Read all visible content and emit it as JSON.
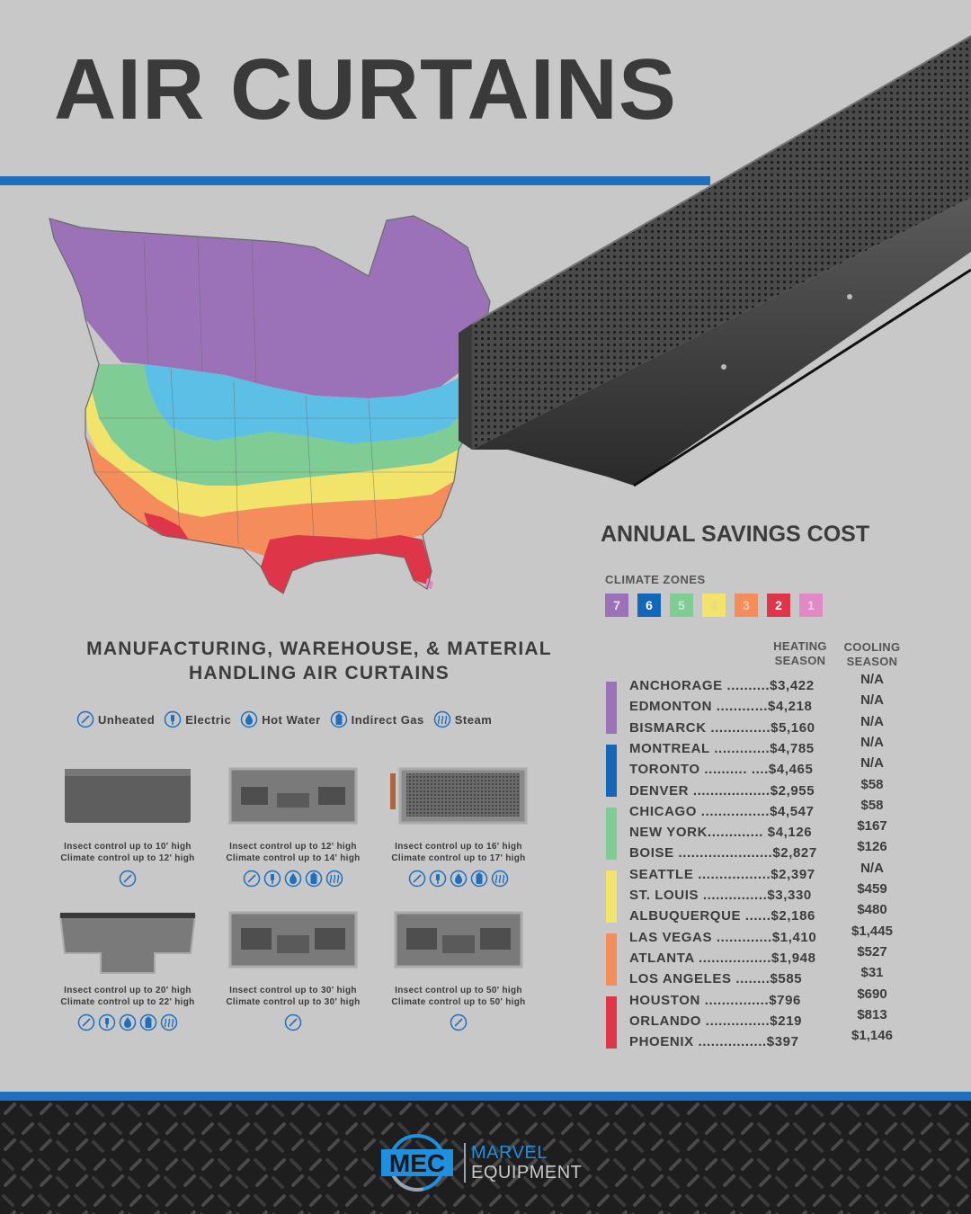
{
  "header": {
    "title": "AIR CURTAINS"
  },
  "savings": {
    "title": "ANNUAL SAVINGS COST",
    "zones_label": "CLIMATE ZONES",
    "zones": [
      {
        "label": "7",
        "color": "#9b72b8",
        "text_color": "#e9e0f1"
      },
      {
        "label": "6",
        "color": "#1466b8",
        "text_color": "#ffffff"
      },
      {
        "label": "5",
        "color": "#7fcc95",
        "text_color": "#c7e9cf"
      },
      {
        "label": "4",
        "color": "#f2e46a",
        "text_color": "#e0d7a0"
      },
      {
        "label": "3",
        "color": "#f48c5c",
        "text_color": "#f6c9b2"
      },
      {
        "label": "2",
        "color": "#de3549",
        "text_color": "#ffffff"
      },
      {
        "label": "1",
        "color": "#e189c5",
        "text_color": "#f3cbe6"
      }
    ],
    "heating_header": "HEATING SEASON",
    "cooling_header": "COOLING SEASON",
    "rows": [
      {
        "city": "ANCHORAGE ..........$3,422",
        "cooling": "N/A"
      },
      {
        "city": "EDMONTON ............$4,218",
        "cooling": "N/A"
      },
      {
        "city": "BISMARCK ..............$5,160",
        "cooling": "N/A"
      },
      {
        "city": "MONTREAL .............$4,785",
        "cooling": "N/A"
      },
      {
        "city": "TORONTO .......... ....$4,465",
        "cooling": "N/A"
      },
      {
        "city": "DENVER ..................$2,955",
        "cooling": "$58"
      },
      {
        "city": "CHICAGO ................$4,547",
        "cooling": "$58"
      },
      {
        "city": "NEW YORK............. $4,126",
        "cooling": "$167"
      },
      {
        "city": "BOISE ......................$2,827",
        "cooling": "$126"
      },
      {
        "city": "SEATTLE .................$2,397",
        "cooling": "N/A"
      },
      {
        "city": "ST. LOUIS ...............$3,330",
        "cooling": "$459"
      },
      {
        "city": "ALBUQUERQUE ......$2,186",
        "cooling": "$480"
      },
      {
        "city": "LAS VEGAS .............$1,410",
        "cooling": "$1,445"
      },
      {
        "city": "ATLANTA .................$1,948",
        "cooling": "$527"
      },
      {
        "city": "LOS ANGELES ........$585",
        "cooling": "$31"
      },
      {
        "city": "HOUSTON ...............$796",
        "cooling": "$690"
      },
      {
        "city": "ORLANDO ...............$219",
        "cooling": "$813"
      },
      {
        "city": "PHOENIX ................$397",
        "cooling": "$1,146"
      }
    ]
  },
  "manufacturing": {
    "title_line1": "MANUFACTURING, WAREHOUSE, & MATERIAL",
    "title_line2": "HANDLING AIR CURTAINS",
    "legend": [
      {
        "icon": "unheated-icon",
        "label": "Unheated"
      },
      {
        "icon": "electric-icon",
        "label": "Electric"
      },
      {
        "icon": "hot-water-icon",
        "label": "Hot Water"
      },
      {
        "icon": "indirect-gas-icon",
        "label": "Indirect Gas"
      },
      {
        "icon": "steam-icon",
        "label": "Steam"
      }
    ],
    "products": [
      {
        "line1": "Insect control up to 10' high",
        "line2": "Climate control up to 12' high",
        "icons": [
          "unheated-icon"
        ]
      },
      {
        "line1": "Insect control up to 12' high",
        "line2": "Climate control up to 14' high",
        "icons": [
          "unheated-icon",
          "electric-icon",
          "hot-water-icon",
          "indirect-gas-icon",
          "steam-icon"
        ]
      },
      {
        "line1": "Insect control up to 16' high",
        "line2": "Climate control up to 17' high",
        "icons": [
          "unheated-icon",
          "electric-icon",
          "hot-water-icon",
          "indirect-gas-icon",
          "steam-icon"
        ]
      },
      {
        "line1": "Insect control up to 20' high",
        "line2": "Climate control up to 22' high",
        "icons": [
          "unheated-icon",
          "electric-icon",
          "hot-water-icon",
          "indirect-gas-icon",
          "steam-icon"
        ]
      },
      {
        "line1": "Insect control up to 30' high",
        "line2": "Climate control up to 30' high",
        "icons": [
          "unheated-icon"
        ]
      },
      {
        "line1": "Insect control up to 50' high",
        "line2": "Climate control up to 50' high",
        "icons": [
          "unheated-icon"
        ]
      }
    ]
  },
  "footer": {
    "logo_mark": "MEC",
    "logo_line1": "MARVEL",
    "logo_line2": "EQUIPMENT"
  }
}
